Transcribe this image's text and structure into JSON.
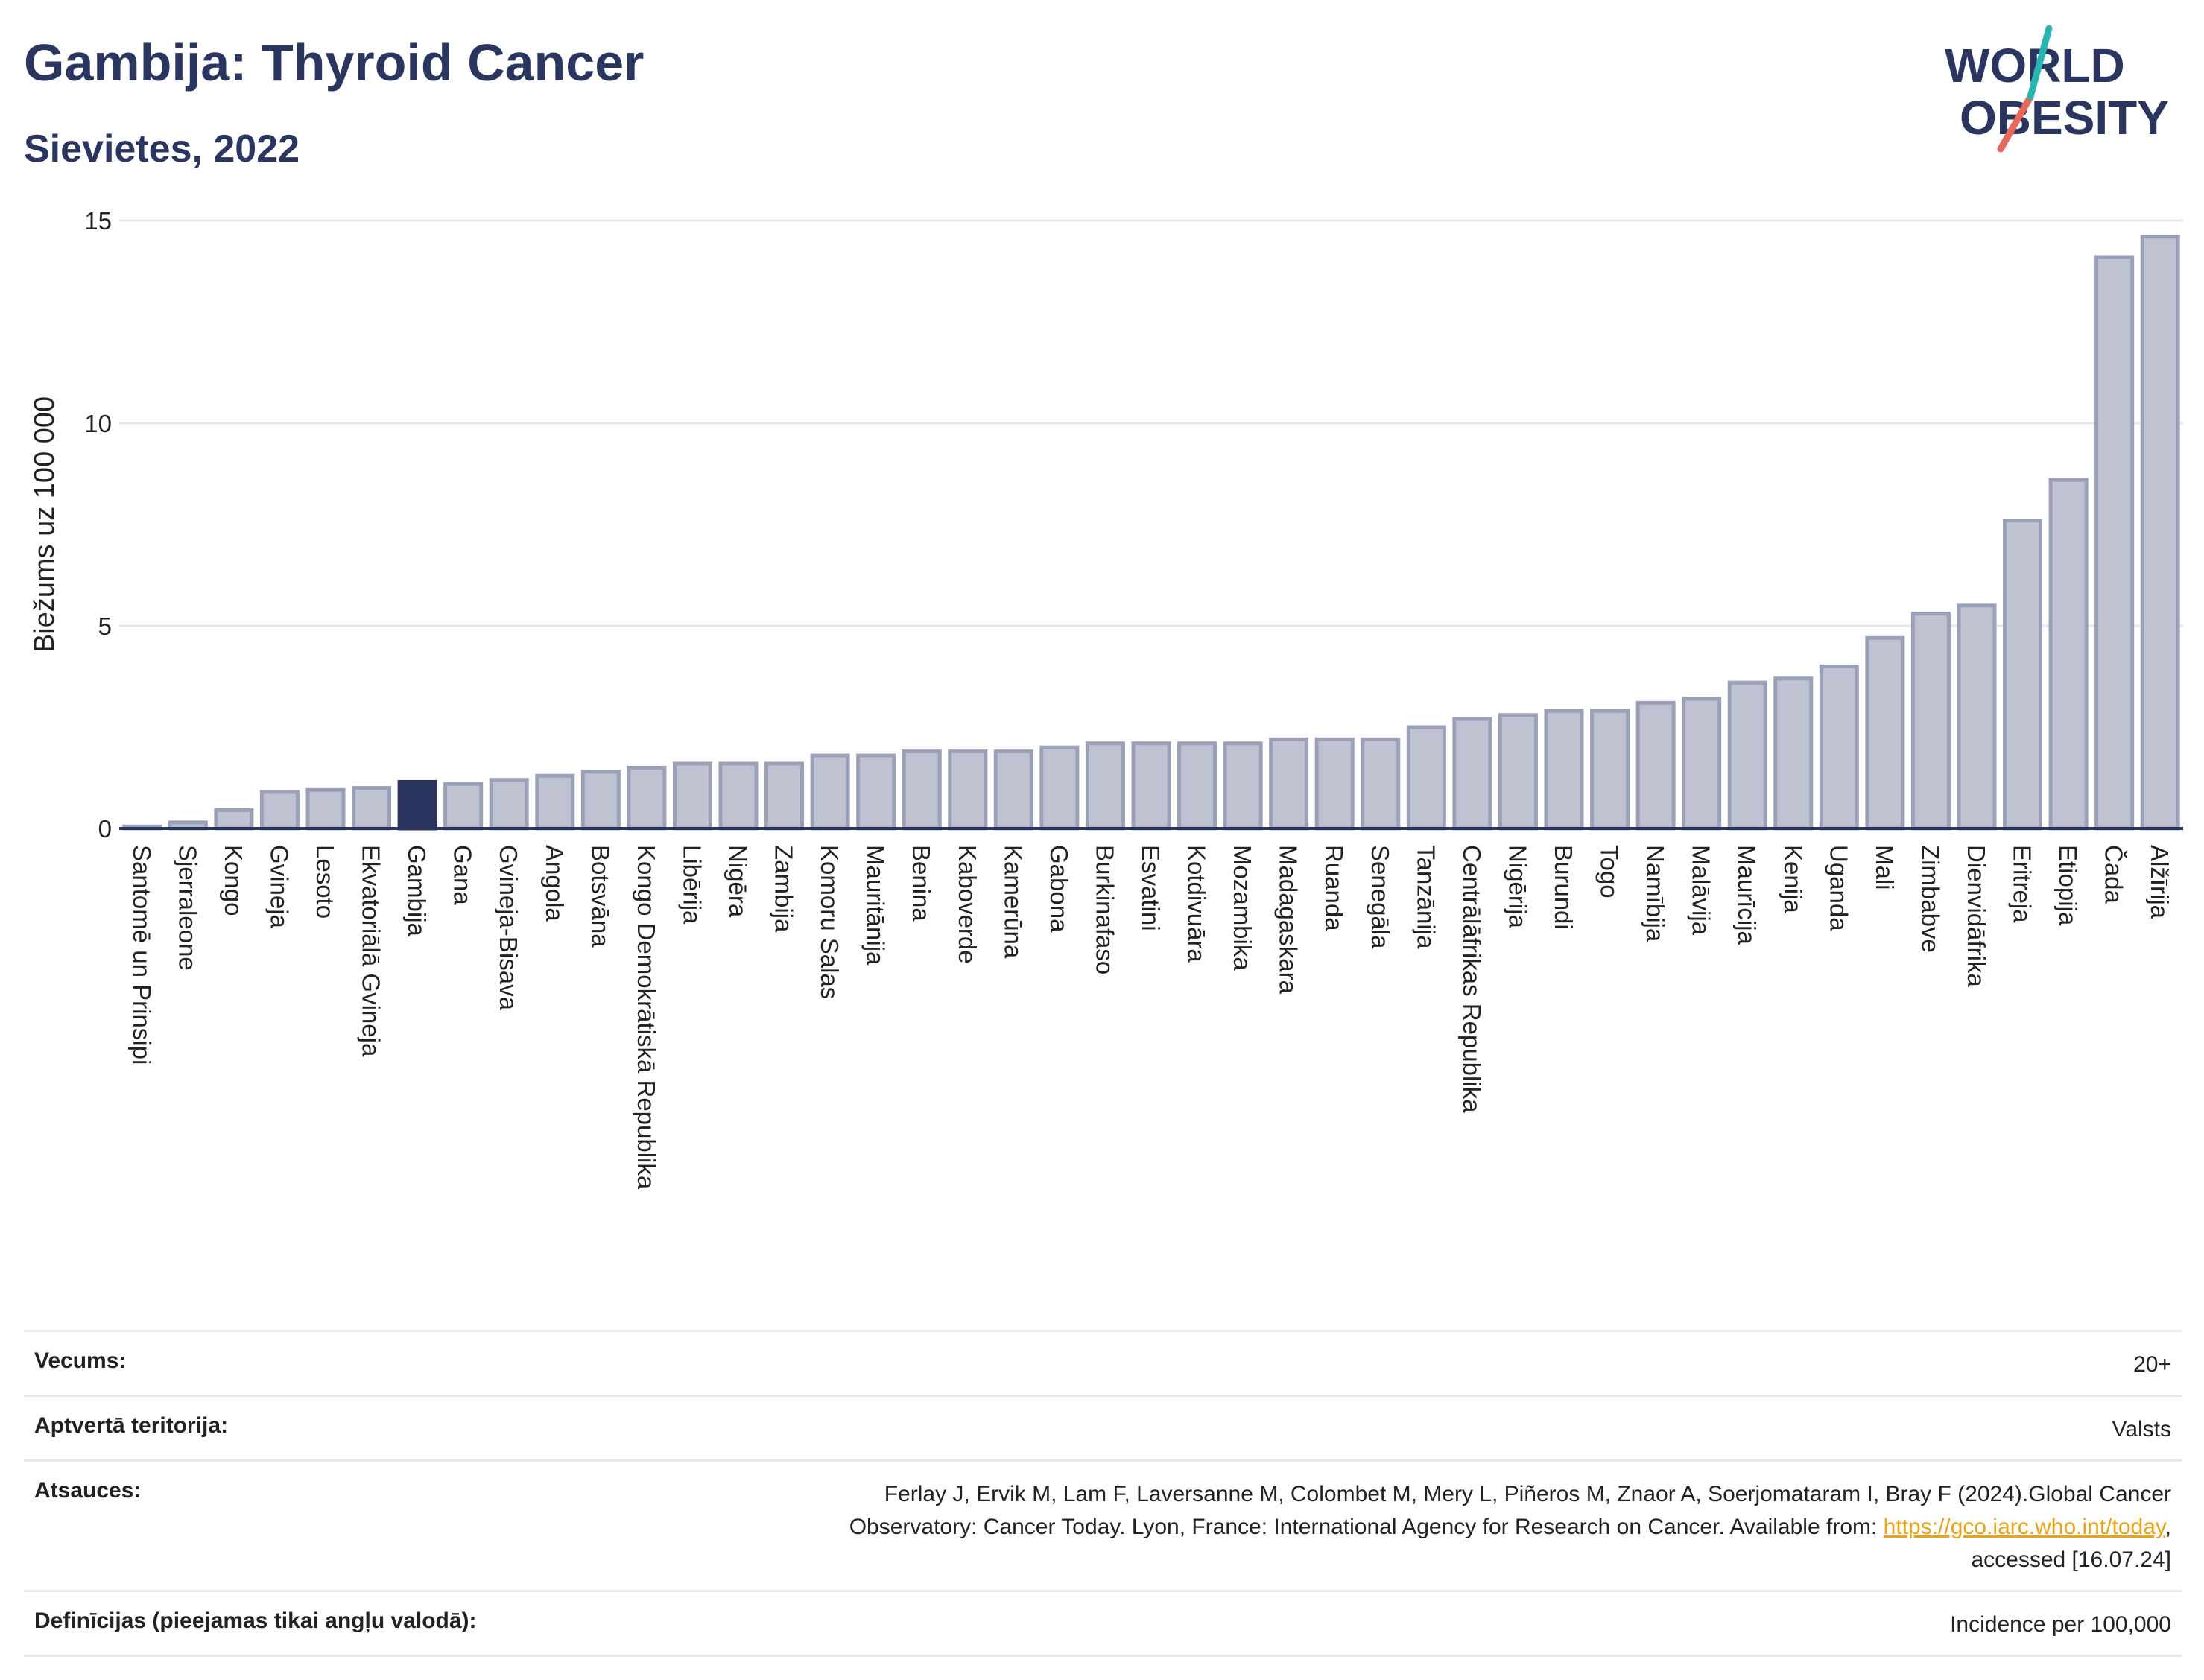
{
  "header": {
    "title": "Gambija: Thyroid Cancer",
    "subtitle": "Sievietes, 2022"
  },
  "logo": {
    "line1": "WORLD",
    "line2": "OBESITY"
  },
  "chart_data": {
    "type": "bar",
    "ylabel": "Biežums uz 100 000",
    "ylim": [
      0,
      15
    ],
    "yticks": [
      0,
      5,
      10,
      15
    ],
    "grid": true,
    "highlight": "Gambija",
    "colors": {
      "bar": "#bfc3d1",
      "bar_border": "#9aa0b8",
      "highlight": "#2b3660",
      "axis": "#2b3660"
    },
    "categories": [
      "Santomē un Prinsipi",
      "Sjerraleone",
      "Kongo",
      "Gvineja",
      "Lesoto",
      "Ekvatoriālā Gvineja",
      "Gambija",
      "Gana",
      "Gvineja-Bisava",
      "Angola",
      "Botsvāna",
      "Kongo Demokrātiskā Republika",
      "Libērija",
      "Nigēra",
      "Zambija",
      "Komoru Salas",
      "Mauritānija",
      "Benina",
      "Kaboverde",
      "Kamerūna",
      "Gabona",
      "Burkinafaso",
      "Esvatini",
      "Kotdivuāra",
      "Mozambika",
      "Madagaskara",
      "Ruanda",
      "Senegāla",
      "Tanzānija",
      "Centrālāfrikas Republika",
      "Nigērija",
      "Burundi",
      "Togo",
      "Namībija",
      "Malāvija",
      "Maurīcija",
      "Kenija",
      "Uganda",
      "Mali",
      "Zimbabve",
      "Dienvidāfrika",
      "Eritreja",
      "Etiopija",
      "Čada",
      "Alžīrija"
    ],
    "values": [
      0.05,
      0.15,
      0.45,
      0.9,
      0.95,
      1.0,
      1.15,
      1.1,
      1.2,
      1.3,
      1.4,
      1.5,
      1.6,
      1.6,
      1.6,
      1.8,
      1.8,
      1.9,
      1.9,
      1.9,
      2.0,
      2.1,
      2.1,
      2.1,
      2.1,
      2.2,
      2.2,
      2.2,
      2.5,
      2.7,
      2.8,
      2.9,
      2.9,
      3.1,
      3.2,
      3.6,
      3.7,
      4.0,
      4.7,
      5.3,
      5.5,
      7.6,
      8.6,
      14.1,
      14.6
    ]
  },
  "meta": {
    "rows": [
      {
        "key": "Vecums:",
        "value": "20+"
      },
      {
        "key": "Aptvertā teritorija:",
        "value": "Valsts"
      },
      {
        "key": "Atsauces:",
        "value_line1": "Ferlay J, Ervik M, Lam F, Laversanne M, Colombet M, Mery L, Piñeros M, Znaor A, Soerjomataram I, Bray F (2024).Global Cancer",
        "value_line2_pre": "Observatory: Cancer Today. Lyon, France: International Agency for Research on Cancer. Available from: ",
        "value_link": "https://gco.iarc.who.int/today",
        "value_line2_post": ",",
        "value_line3": "accessed [16.07.24]"
      },
      {
        "key": "Definīcijas (pieejamas tikai angļu valodā):",
        "value": "Incidence per 100,000"
      }
    ]
  }
}
